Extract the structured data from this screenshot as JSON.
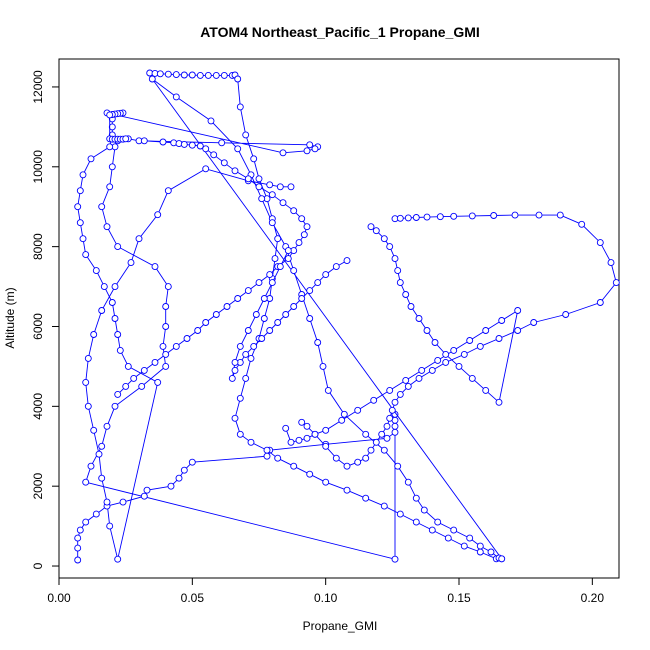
{
  "chart_data": {
    "type": "line",
    "title": "ATOM4 Northeast_Pacific_1 Propane_GMI",
    "xlabel": "Propane_GMI",
    "ylabel": "Altitude (m)",
    "xlim": [
      0.0,
      0.21
    ],
    "ylim": [
      -300,
      12700
    ],
    "x_ticks": [
      0.0,
      0.05,
      0.1,
      0.15,
      0.2
    ],
    "x_tick_labels": [
      "0.00",
      "0.05",
      "0.10",
      "0.15",
      "0.20"
    ],
    "y_ticks": [
      0,
      2000,
      4000,
      6000,
      8000,
      10000,
      12000
    ],
    "y_tick_labels": [
      "0",
      "2000",
      "4000",
      "6000",
      "8000",
      "10000",
      "12000"
    ],
    "grid": false,
    "legend": "none",
    "series_color": "#0000ff",
    "series": [
      {
        "x": [
          0.007,
          0.007,
          0.007,
          0.008,
          0.01,
          0.014,
          0.018,
          0.024,
          0.032,
          0.033,
          0.042,
          0.045,
          0.047,
          0.05,
          0.078,
          0.079,
          0.1,
          0.123,
          0.126,
          0.126,
          0.126,
          0.126,
          0.126,
          0.01,
          0.012,
          0.016,
          0.018,
          0.021,
          0.031,
          0.04,
          0.039,
          0.04,
          0.04,
          0.041,
          0.036,
          0.022,
          0.018,
          0.016,
          0.019,
          0.02,
          0.021,
          0.022,
          0.026,
          0.03,
          0.061,
          0.094,
          0.097,
          0.096,
          0.093,
          0.084,
          0.018,
          0.02,
          0.02,
          0.02,
          0.02,
          0.019,
          0.012,
          0.009,
          0.008,
          0.007,
          0.008,
          0.009,
          0.01,
          0.014,
          0.017,
          0.02,
          0.021,
          0.022,
          0.023,
          0.026,
          0.037,
          0.022,
          0.019,
          0.018,
          0.016,
          0.015,
          0.013,
          0.011,
          0.01,
          0.011,
          0.013,
          0.016,
          0.021,
          0.027,
          0.03,
          0.037,
          0.041,
          0.055,
          0.071,
          0.079,
          0.083,
          0.087
        ],
        "y": [
          150,
          450,
          700,
          900,
          1100,
          1300,
          1500,
          1600,
          1750,
          1900,
          2000,
          2200,
          2400,
          2600,
          2750,
          2900,
          3050,
          3200,
          3350,
          3500,
          3650,
          3800,
          170,
          2100,
          2500,
          3000,
          3500,
          4000,
          4500,
          5000,
          5500,
          6000,
          6500,
          7000,
          7500,
          8000,
          8500,
          9000,
          9500,
          10000,
          10500,
          10650,
          10700,
          10650,
          10600,
          10550,
          10500,
          10450,
          10400,
          10350,
          11350,
          11300,
          11200,
          11000,
          10800,
          10500,
          10200,
          9800,
          9400,
          9000,
          8600,
          8200,
          7800,
          7400,
          7000,
          6600,
          6200,
          5800,
          5400,
          5000,
          4600,
          170,
          1000,
          1600,
          2200,
          2800,
          3400,
          4000,
          4600,
          5200,
          5800,
          6400,
          7000,
          7600,
          8200,
          8800,
          9400,
          9950,
          9650,
          9550,
          9500,
          9500
        ]
      },
      {
        "x": [
          0.034,
          0.036,
          0.038,
          0.041,
          0.044,
          0.047,
          0.05,
          0.053,
          0.056,
          0.059,
          0.062,
          0.065,
          0.066,
          0.067,
          0.068,
          0.07,
          0.073,
          0.075,
          0.078,
          0.08,
          0.082,
          0.081,
          0.08,
          0.079,
          0.077,
          0.075,
          0.072,
          0.07,
          0.068,
          0.066,
          0.068,
          0.072,
          0.078,
          0.082,
          0.088,
          0.094,
          0.1,
          0.108,
          0.115,
          0.122,
          0.128,
          0.134,
          0.14,
          0.146,
          0.152,
          0.158,
          0.164,
          0.166,
          0.035,
          0.044,
          0.057,
          0.067,
          0.072,
          0.076,
          0.08,
          0.085,
          0.088,
          0.091,
          0.094,
          0.097,
          0.099,
          0.101,
          0.107,
          0.115,
          0.122,
          0.127,
          0.131,
          0.134,
          0.137,
          0.142,
          0.148,
          0.154,
          0.158,
          0.162,
          0.165,
          0.166
        ],
        "y": [
          12350,
          12340,
          12330,
          12320,
          12310,
          12300,
          12300,
          12290,
          12290,
          12290,
          12290,
          12290,
          12300,
          12200,
          11500,
          10800,
          10200,
          9700,
          9200,
          8700,
          8200,
          7700,
          7200,
          6700,
          6200,
          5700,
          5200,
          4700,
          4200,
          3700,
          3300,
          3100,
          2900,
          2700,
          2500,
          2300,
          2100,
          1900,
          1700,
          1500,
          1300,
          1100,
          900,
          700,
          500,
          350,
          180,
          180,
          12200,
          11750,
          11150,
          10450,
          9800,
          9200,
          8600,
          8000,
          7400,
          6800,
          6200,
          5600,
          5000,
          4400,
          3800,
          3300,
          2900,
          2500,
          2100,
          1700,
          1400,
          1100,
          900,
          700,
          500,
          350,
          200,
          180
        ]
      },
      {
        "x": [
          0.032,
          0.039,
          0.043,
          0.045,
          0.047,
          0.05,
          0.053,
          0.055,
          0.058,
          0.062,
          0.066,
          0.071,
          0.075,
          0.08,
          0.084,
          0.088,
          0.091,
          0.093,
          0.092,
          0.09,
          0.088,
          0.086,
          0.082,
          0.079,
          0.075,
          0.071,
          0.067,
          0.063,
          0.059,
          0.055,
          0.052,
          0.048,
          0.044,
          0.04,
          0.036,
          0.032,
          0.028,
          0.025,
          0.022
        ],
        "y": [
          10650,
          10620,
          10600,
          10580,
          10560,
          10540,
          10520,
          10450,
          10300,
          10100,
          9900,
          9700,
          9500,
          9300,
          9100,
          8900,
          8700,
          8500,
          8300,
          8100,
          7900,
          7700,
          7500,
          7300,
          7100,
          6900,
          6700,
          6500,
          6300,
          6100,
          5900,
          5700,
          5500,
          5300,
          5100,
          4900,
          4700,
          4500,
          4300
        ]
      },
      {
        "x": [
          0.126,
          0.128,
          0.131,
          0.134,
          0.138,
          0.143,
          0.148,
          0.155,
          0.163,
          0.171,
          0.18,
          0.188,
          0.196,
          0.203,
          0.207,
          0.209,
          0.203,
          0.19,
          0.178,
          0.172,
          0.165,
          0.158,
          0.152,
          0.145,
          0.14,
          0.135,
          0.131,
          0.128,
          0.126,
          0.125,
          0.124,
          0.123,
          0.121,
          0.119,
          0.117,
          0.115,
          0.112,
          0.108,
          0.104,
          0.1,
          0.096,
          0.093,
          0.091
        ],
        "y": [
          8700,
          8710,
          8720,
          8730,
          8740,
          8750,
          8760,
          8770,
          8780,
          8790,
          8790,
          8790,
          8560,
          8100,
          7600,
          7100,
          6600,
          6300,
          6100,
          5900,
          5700,
          5500,
          5300,
          5100,
          4900,
          4700,
          4500,
          4300,
          4100,
          3900,
          3700,
          3500,
          3300,
          3100,
          2900,
          2700,
          2600,
          2500,
          2700,
          3000,
          3300,
          3500,
          3600
        ]
      },
      {
        "x": [
          0.117,
          0.119,
          0.122,
          0.124,
          0.126,
          0.127,
          0.128,
          0.13,
          0.132,
          0.135,
          0.138,
          0.141,
          0.145,
          0.15,
          0.155,
          0.16,
          0.165,
          0.172,
          0.166,
          0.16,
          0.154,
          0.148,
          0.142,
          0.136,
          0.13,
          0.124,
          0.118,
          0.112,
          0.106,
          0.1,
          0.096,
          0.093,
          0.09,
          0.087,
          0.085
        ],
        "y": [
          8500,
          8400,
          8200,
          8000,
          7700,
          7400,
          7100,
          6800,
          6500,
          6200,
          5900,
          5600,
          5300,
          5000,
          4700,
          4400,
          4100,
          6400,
          6150,
          5900,
          5650,
          5400,
          5150,
          4900,
          4650,
          4400,
          4150,
          3900,
          3650,
          3400,
          3300,
          3200,
          3150,
          3100,
          3450
        ]
      },
      {
        "x": [
          0.108,
          0.104,
          0.1,
          0.097,
          0.094,
          0.091,
          0.088,
          0.085,
          0.082,
          0.079,
          0.076,
          0.073,
          0.07,
          0.068,
          0.066,
          0.065,
          0.066,
          0.068,
          0.071,
          0.074,
          0.077,
          0.08,
          0.083,
          0.086
        ],
        "y": [
          7650,
          7500,
          7300,
          7100,
          6900,
          6700,
          6500,
          6300,
          6100,
          5900,
          5700,
          5500,
          5300,
          5100,
          4900,
          4700,
          5100,
          5500,
          5900,
          6300,
          6700,
          7100,
          7500,
          7900
        ]
      },
      {
        "x": [
          0.024,
          0.023,
          0.022,
          0.021,
          0.02,
          0.019,
          0.019,
          0.02,
          0.021,
          0.022,
          0.023,
          0.024,
          0.025
        ],
        "y": [
          11350,
          11340,
          11330,
          11320,
          11310,
          11300,
          10700,
          10690,
          10690,
          10690,
          10690,
          10690,
          10700
        ]
      }
    ]
  }
}
